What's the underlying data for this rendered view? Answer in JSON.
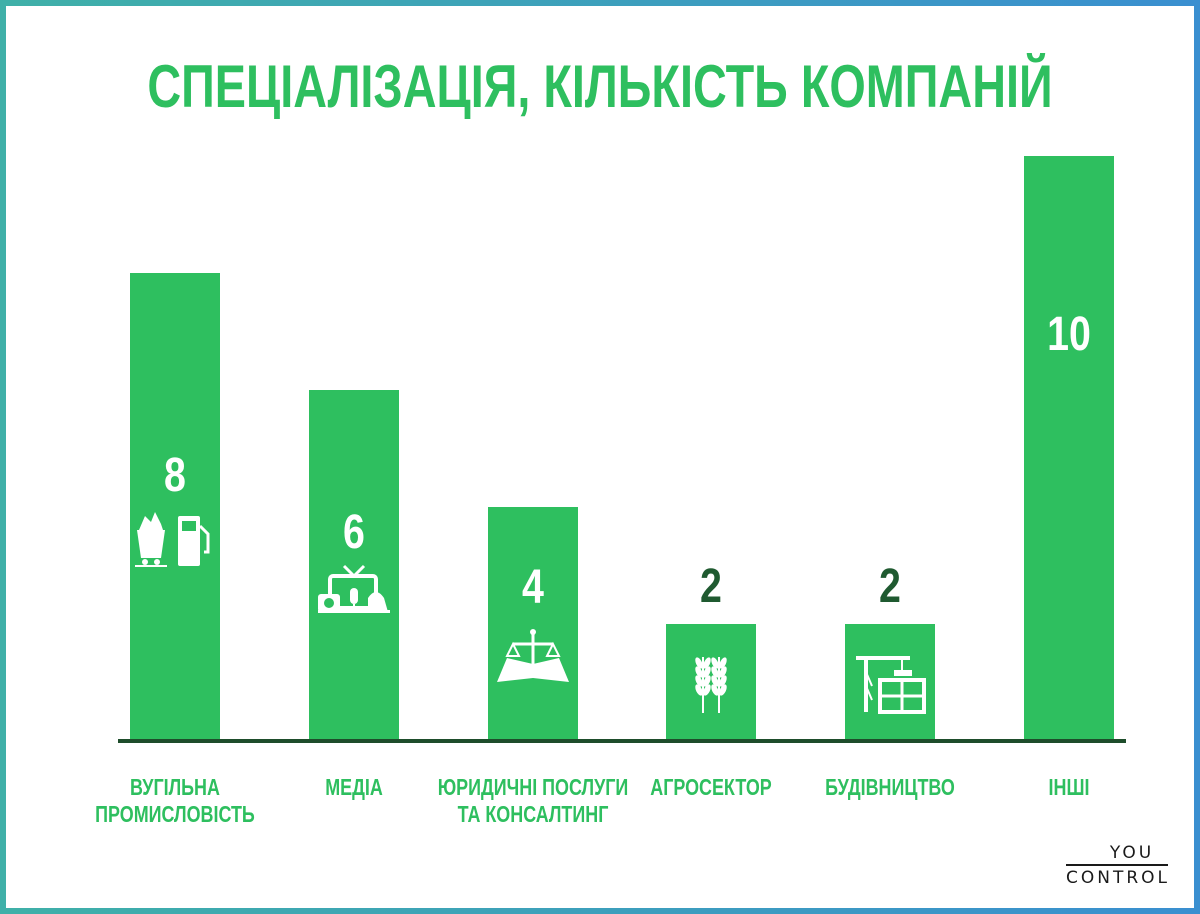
{
  "chart_data": {
    "type": "bar",
    "title": "СПЕЦІАЛІЗАЦІЯ, КІЛЬКІСТЬ КОМПАНІЙ",
    "categories": [
      [
        "ВУГІЛЬНА",
        "ПРОМИСЛОВІСТЬ"
      ],
      [
        "МЕДІА"
      ],
      [
        "ЮРИДИЧНІ ПОСЛУГИ",
        "ТА КОНСАЛТИНГ"
      ],
      [
        "АГРОСЕКТОР"
      ],
      [
        "БУДІВНИЦТВО"
      ],
      [
        "ІНШІ"
      ]
    ],
    "values": [
      8,
      6,
      4,
      2,
      2,
      10
    ],
    "icons": [
      "coal-fuel-icon",
      "media-tv-icon",
      "law-scales-icon",
      "wheat-icon",
      "construction-crane-icon",
      ""
    ],
    "value_label_colors": [
      "#ffffff",
      "#ffffff",
      "#ffffff",
      "#1f5a30",
      "#1f5a30",
      "#ffffff"
    ],
    "ylim": [
      0,
      10
    ],
    "grid": false,
    "legend": "none",
    "colors": {
      "bar": "#2ebf5f",
      "baseline": "#1e4d2b",
      "category_label": "#2ebf5f",
      "title": "#2ebf5f"
    }
  },
  "logo": {
    "line1": "YOU",
    "line2": "CONTROL"
  }
}
